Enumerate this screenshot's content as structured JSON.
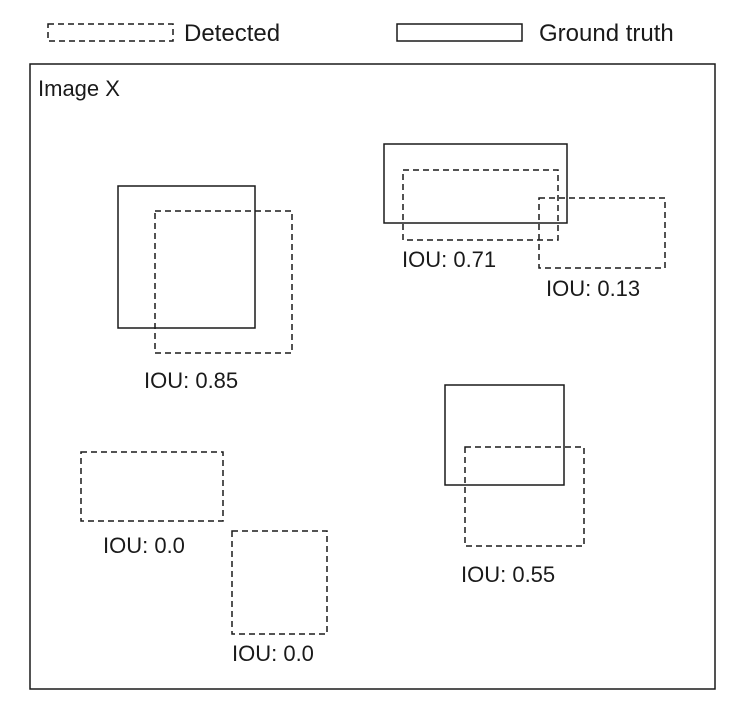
{
  "legend": {
    "detected_label": "Detected",
    "ground_truth_label": "Ground truth"
  },
  "frame": {
    "title": "Image X"
  },
  "examples": [
    {
      "iou_label": "IOU: 0.85"
    },
    {
      "iou_label": "IOU: 0.71"
    },
    {
      "iou_label": "IOU: 0.13"
    },
    {
      "iou_label": "IOU: 0.0"
    },
    {
      "iou_label": "IOU: 0.0"
    },
    {
      "iou_label": "IOU: 0.55"
    }
  ],
  "styles": {
    "stroke_color": "#1a1a1a",
    "background": "#ffffff"
  }
}
